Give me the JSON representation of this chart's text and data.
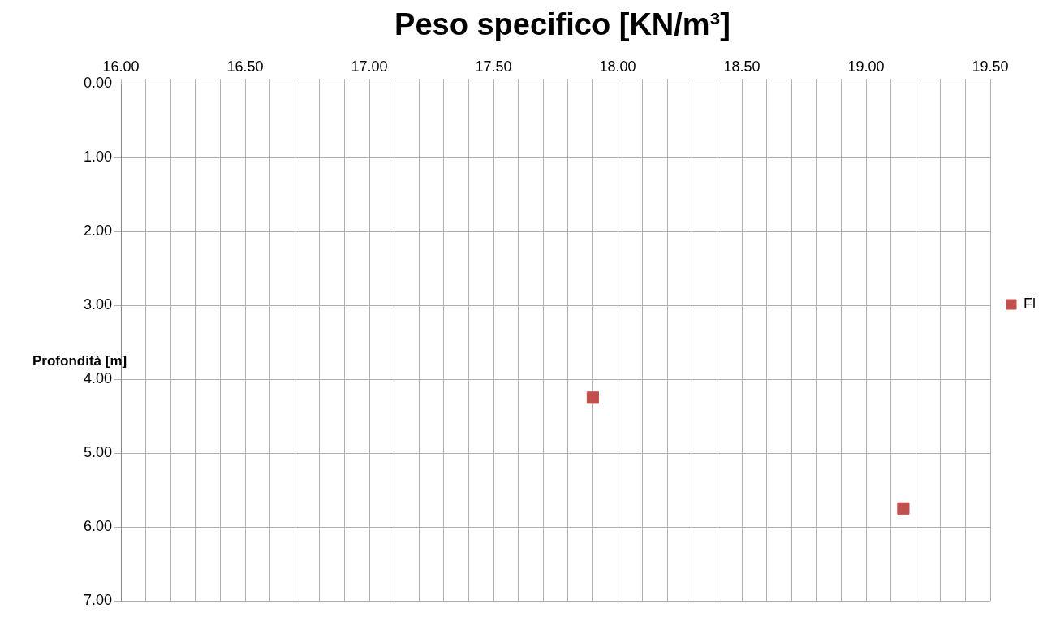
{
  "chart_data": {
    "type": "scatter",
    "title": "Peso specifico [KN/m³]",
    "ylabel": "Profondità [m]",
    "series": [
      {
        "name": "Fl",
        "color": "#c0504d",
        "x": [
          17.9,
          19.15
        ],
        "values": [
          4.25,
          5.75
        ]
      }
    ],
    "xlim": [
      16,
      19.5
    ],
    "xticks": [
      {
        "value": 16,
        "label": "16.00"
      },
      {
        "value": 16.1,
        "label": null
      },
      {
        "value": 16.2,
        "label": null
      },
      {
        "value": 16.3,
        "label": null
      },
      {
        "value": 16.4,
        "label": null
      },
      {
        "value": 16.5,
        "label": "16.50"
      },
      {
        "value": 16.6,
        "label": null
      },
      {
        "value": 16.7,
        "label": null
      },
      {
        "value": 16.8,
        "label": null
      },
      {
        "value": 16.9,
        "label": null
      },
      {
        "value": 17,
        "label": "17.00"
      },
      {
        "value": 17.1,
        "label": null
      },
      {
        "value": 17.2,
        "label": null
      },
      {
        "value": 17.3,
        "label": null
      },
      {
        "value": 17.4,
        "label": null
      },
      {
        "value": 17.5,
        "label": "17.50"
      },
      {
        "value": 17.6,
        "label": null
      },
      {
        "value": 17.7,
        "label": null
      },
      {
        "value": 17.8,
        "label": null
      },
      {
        "value": 17.9,
        "label": null
      },
      {
        "value": 18,
        "label": "18.00"
      },
      {
        "value": 18.1,
        "label": null
      },
      {
        "value": 18.2,
        "label": null
      },
      {
        "value": 18.3,
        "label": null
      },
      {
        "value": 18.4,
        "label": null
      },
      {
        "value": 18.5,
        "label": "18.50"
      },
      {
        "value": 18.6,
        "label": null
      },
      {
        "value": 18.7,
        "label": null
      },
      {
        "value": 18.8,
        "label": null
      },
      {
        "value": 18.9,
        "label": null
      },
      {
        "value": 19,
        "label": "19.00"
      },
      {
        "value": 19.1,
        "label": null
      },
      {
        "value": 19.2,
        "label": null
      },
      {
        "value": 19.3,
        "label": null
      },
      {
        "value": 19.4,
        "label": null
      },
      {
        "value": 19.5,
        "label": "19.50"
      }
    ],
    "ylim": [
      7,
      0
    ],
    "yticks": [
      {
        "value": 0,
        "label": "0.00"
      },
      {
        "value": 1,
        "label": "1.00"
      },
      {
        "value": 2,
        "label": "2.00"
      },
      {
        "value": 3,
        "label": "3.00"
      },
      {
        "value": 4,
        "label": "4.00"
      },
      {
        "value": 5,
        "label": "5.00"
      },
      {
        "value": 6,
        "label": "6.00"
      },
      {
        "value": 7,
        "label": "7.00"
      }
    ],
    "grid": true,
    "legend": "right",
    "marker": "square"
  }
}
